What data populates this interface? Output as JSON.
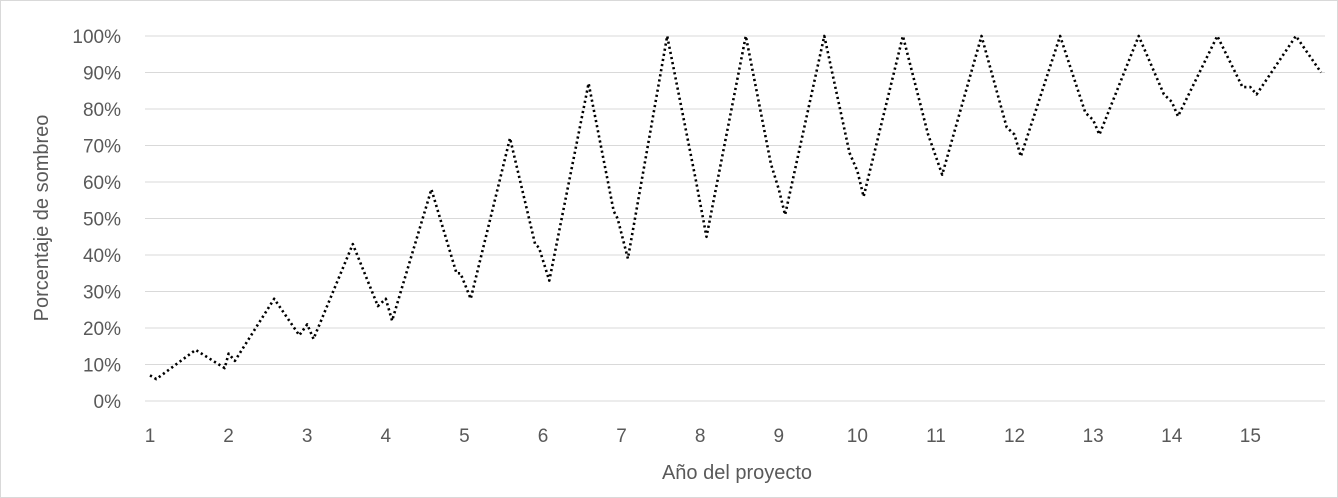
{
  "chart_data": {
    "type": "line",
    "title": "",
    "xlabel": "Año del proyecto",
    "ylabel": "Porcentaje de sombreo",
    "xlim": [
      1,
      15.95
    ],
    "ylim": [
      0,
      100
    ],
    "x_ticks": [
      "1",
      "2",
      "3",
      "4",
      "5",
      "6",
      "7",
      "8",
      "9",
      "10",
      "11",
      "12",
      "13",
      "14",
      "15"
    ],
    "y_ticks": [
      "0%",
      "10%",
      "20%",
      "30%",
      "40%",
      "50%",
      "60%",
      "70%",
      "80%",
      "90%",
      "100%"
    ],
    "grid": "horizontal",
    "legend": "none",
    "line_style": "dotted",
    "line_color": "#000000",
    "x": [
      1,
      1.08,
      1.58,
      1.95,
      2,
      2.08,
      2.58,
      2.9,
      3,
      3.08,
      3.58,
      3.9,
      4,
      4.08,
      4.58,
      4.9,
      4.95,
      5.08,
      5.58,
      5.9,
      5.95,
      6.08,
      6.58,
      6.9,
      6.95,
      7.08,
      7.58,
      7.95,
      8.08,
      8.58,
      8.9,
      9,
      9.08,
      9.58,
      9.9,
      10,
      10.08,
      10.58,
      10.9,
      10.95,
      11.08,
      11.58,
      11.9,
      12,
      12.08,
      12.58,
      12.9,
      13,
      13.08,
      13.58,
      13.9,
      14,
      14.08,
      14.58,
      14.9,
      15,
      15.08,
      15.58,
      15.9
    ],
    "values": [
      7,
      6,
      14,
      9,
      13,
      11,
      28,
      18,
      21,
      17,
      43,
      26,
      28,
      22,
      58,
      35,
      35,
      28,
      72,
      43,
      42,
      33,
      87,
      52,
      50,
      39,
      100,
      60,
      45,
      100,
      65,
      58,
      51,
      100,
      68,
      63,
      56,
      100,
      73,
      70,
      62,
      100,
      75,
      73,
      67,
      100,
      79,
      77,
      73,
      100,
      84,
      82,
      78,
      100,
      86,
      86,
      84,
      100,
      90
    ]
  }
}
